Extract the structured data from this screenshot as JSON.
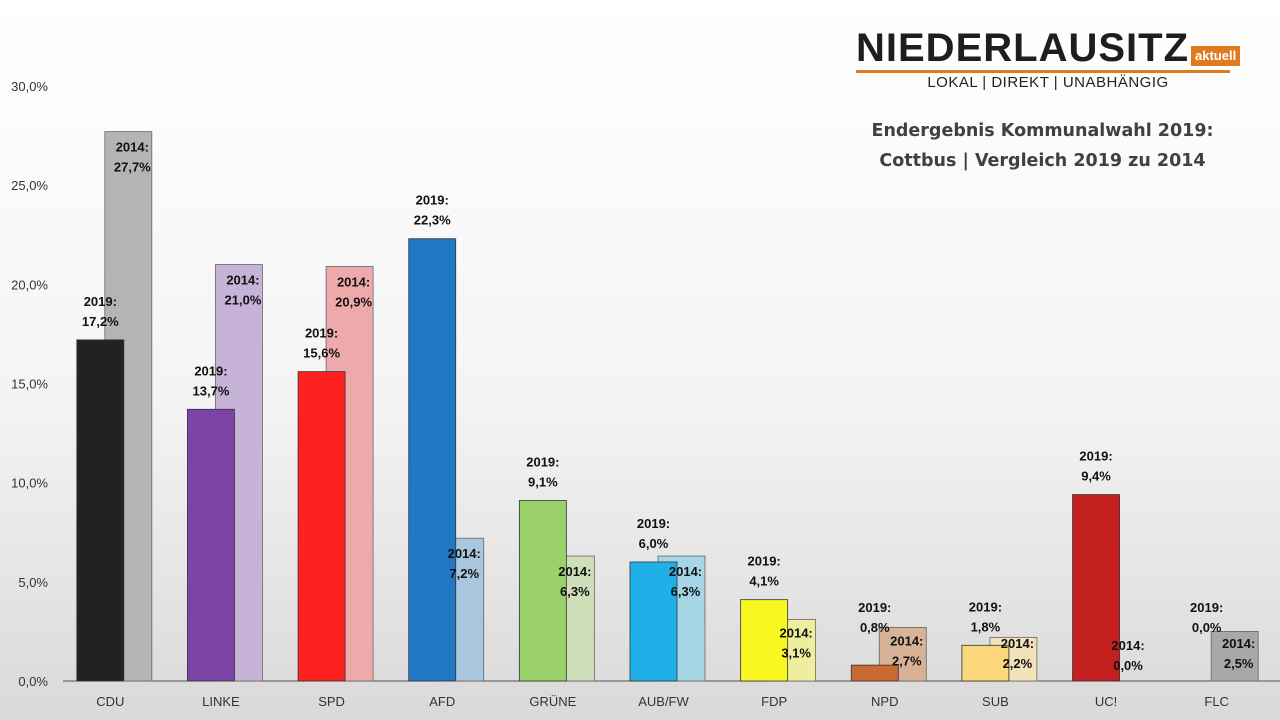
{
  "logo": {
    "word": "NIEDERLAUSITZ",
    "badge": "aktuell",
    "tagline": "LOKAL | DIREKT | UNABHÄNGIG"
  },
  "title": {
    "line1": "Endergebnis Kommunalwahl 2019:",
    "line2": "Cottbus | Vergleich 2019 zu 2014"
  },
  "chart_data": {
    "type": "bar",
    "title": "Endergebnis Kommunalwahl 2019: Cottbus | Vergleich 2019 zu 2014",
    "xlabel": "",
    "ylabel": "",
    "ylim": [
      0,
      30
    ],
    "yticks": [
      "0,0%",
      "5,0%",
      "10,0%",
      "15,0%",
      "20,0%",
      "25,0%",
      "30,0%"
    ],
    "categories": [
      "CDU",
      "LINKE",
      "SPD",
      "AFD",
      "GRÜNE",
      "AUB/FW",
      "FDP",
      "NPD",
      "SUB",
      "UC!",
      "FLC"
    ],
    "series": [
      {
        "name": "2019",
        "values": [
          17.2,
          13.7,
          15.6,
          22.3,
          9.1,
          6.0,
          4.1,
          0.8,
          1.8,
          9.4,
          0.0
        ],
        "labels": [
          "2019:\n17,2%",
          "2019:\n13,7%",
          "2019:\n15,6%",
          "2019:\n22,3%",
          "2019:\n9,1%",
          "2019:\n6,0%",
          "2019:\n4,1%",
          "2019:\n0,8%",
          "2019:\n1,8%",
          "2019:\n9,4%",
          "2019:\n0,0%"
        ],
        "colors": [
          "#222222",
          "#7b44a6",
          "#ff2020",
          "#2179c6",
          "#9bd16a",
          "#1fb0e8",
          "#f8f820",
          "#c86a32",
          "#fbd67a",
          "#c52020",
          "#b0b0b0"
        ]
      },
      {
        "name": "2014",
        "values": [
          27.7,
          21.0,
          20.9,
          7.2,
          6.3,
          6.3,
          3.1,
          2.7,
          2.2,
          0.0,
          2.5
        ],
        "labels": [
          "2014:\n27,7%",
          "2014:\n21,0%",
          "2014:\n20,9%",
          "2014:\n7,2%",
          "2014:\n6,3%",
          "2014:\n6,3%",
          "2014:\n3,1%",
          "2014:\n2,7%",
          "2014:\n2,2%",
          "2014:\n0,0%",
          "2014:\n2,5%"
        ],
        "colors": [
          "#b4b4b4",
          "#c7b2d8",
          "#eeaaaa",
          "#a8c6de",
          "#cfdfba",
          "#a6d6e6",
          "#eeee9e",
          "#d8b296",
          "#f2e2bb",
          "#e6a8a8",
          "#a8a8a8"
        ]
      }
    ],
    "grid": false,
    "legend": "none"
  }
}
